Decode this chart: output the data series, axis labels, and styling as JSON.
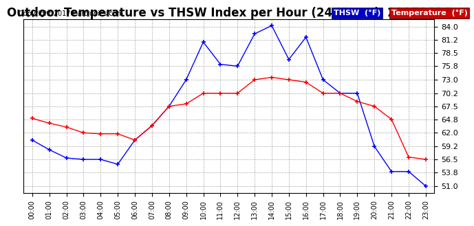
{
  "title": "Outdoor Temperature vs THSW Index per Hour (24 Hours)  20170624",
  "copyright": "Copyright 2017 Cartronics.com",
  "hours": [
    0,
    1,
    2,
    3,
    4,
    5,
    6,
    7,
    8,
    9,
    10,
    11,
    12,
    13,
    14,
    15,
    16,
    17,
    18,
    19,
    20,
    21,
    22,
    23
  ],
  "thsw": [
    60.5,
    58.5,
    56.8,
    56.5,
    56.5,
    55.5,
    60.5,
    63.5,
    67.5,
    73.0,
    80.8,
    76.2,
    75.8,
    82.5,
    84.2,
    77.2,
    81.8,
    73.0,
    70.2,
    70.2,
    59.2,
    54.0,
    54.0,
    51.0
  ],
  "temperature": [
    65.0,
    64.0,
    63.2,
    62.0,
    61.8,
    61.8,
    60.5,
    63.5,
    67.5,
    68.0,
    70.2,
    70.2,
    70.2,
    73.0,
    73.5,
    73.0,
    72.5,
    70.2,
    70.2,
    68.5,
    67.5,
    64.8,
    57.0,
    56.5
  ],
  "thsw_color": "#0000ff",
  "temp_color": "#ff0000",
  "bg_color": "#ffffff",
  "grid_color": "#aaaaaa",
  "yticks": [
    51.0,
    53.8,
    56.5,
    59.2,
    62.0,
    64.8,
    67.5,
    70.2,
    73.0,
    75.8,
    78.5,
    81.2,
    84.0
  ],
  "ylim": [
    49.5,
    85.5
  ],
  "xlim": [
    -0.5,
    23.5
  ],
  "legend_thsw_bg": "#0000cc",
  "legend_temp_bg": "#cc0000",
  "title_fontsize": 12,
  "copyright_fontsize": 7,
  "tick_fontsize": 8,
  "xtick_fontsize": 7
}
